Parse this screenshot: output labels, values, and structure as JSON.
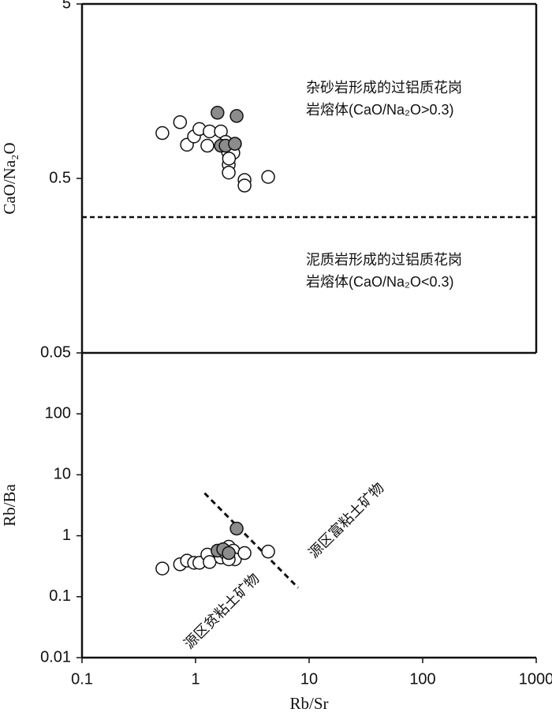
{
  "chart_data": [
    {
      "type": "scatter",
      "ylabel": "CaO/Na₂O",
      "ylog": true,
      "xlog": true,
      "xlim": [
        0.1,
        1000
      ],
      "ylim": [
        0.05,
        5
      ],
      "yticks": [
        5,
        0.5,
        0.05
      ],
      "hline": 0.3,
      "annotations": [
        "杂砂岩形成的过铝质花岗",
        "岩熔体(CaO/Na₂O>0.3)",
        "泥质岩形成的过铝质花岗",
        "岩熔体(CaO/Na₂O<0.3)"
      ],
      "series": [
        {
          "color": "#ffffff",
          "x": [
            0.51,
            0.73,
            0.84,
            0.97,
            1.08,
            1.27,
            1.33,
            1.67,
            1.84,
            1.93,
            1.96,
            1.96,
            2.15,
            2.22,
            2.7,
            2.7,
            4.36,
            1.97
          ],
          "values": [
            0.91,
            1.05,
            0.78,
            0.87,
            0.96,
            0.77,
            0.93,
            0.93,
            0.81,
            0.71,
            0.6,
            0.54,
            0.7,
            0.79,
            0.49,
            0.455,
            0.51,
            0.65
          ]
        },
        {
          "color": "#8c8c8c",
          "x": [
            1.56,
            2.3,
            1.67,
            1.84,
            2.22
          ],
          "values": [
            1.19,
            1.14,
            0.77,
            0.77,
            0.79
          ]
        }
      ]
    },
    {
      "type": "scatter",
      "ylabel": "Rb/Ba",
      "xlabel": "Rb/Sr",
      "ylog": true,
      "xlog": true,
      "xlim": [
        0.1,
        1000
      ],
      "ylim": [
        0.01,
        1000
      ],
      "xticks": [
        0.1,
        1,
        10,
        100,
        1000
      ],
      "yticks": [
        0.01,
        0.1,
        1,
        10,
        100
      ],
      "divider": {
        "x": [
          1.2,
          8
        ],
        "y": [
          5,
          0.14
        ]
      },
      "annotations": [
        "源区富粘土矿物",
        "源区贫粘土矿物"
      ],
      "series": [
        {
          "color": "#ffffff",
          "x": [
            0.51,
            0.73,
            0.84,
            0.97,
            1.08,
            1.27,
            1.33,
            1.67,
            1.84,
            1.96,
            2.15,
            2.22,
            2.7,
            4.36,
            1.96
          ],
          "values": [
            0.29,
            0.34,
            0.39,
            0.36,
            0.36,
            0.49,
            0.37,
            0.44,
            0.52,
            0.66,
            0.57,
            0.41,
            0.52,
            0.55,
            0.41
          ]
        },
        {
          "color": "#8c8c8c",
          "x": [
            2.3,
            1.56,
            1.75,
            1.96
          ],
          "values": [
            1.31,
            0.57,
            0.6,
            0.52
          ]
        }
      ]
    }
  ]
}
